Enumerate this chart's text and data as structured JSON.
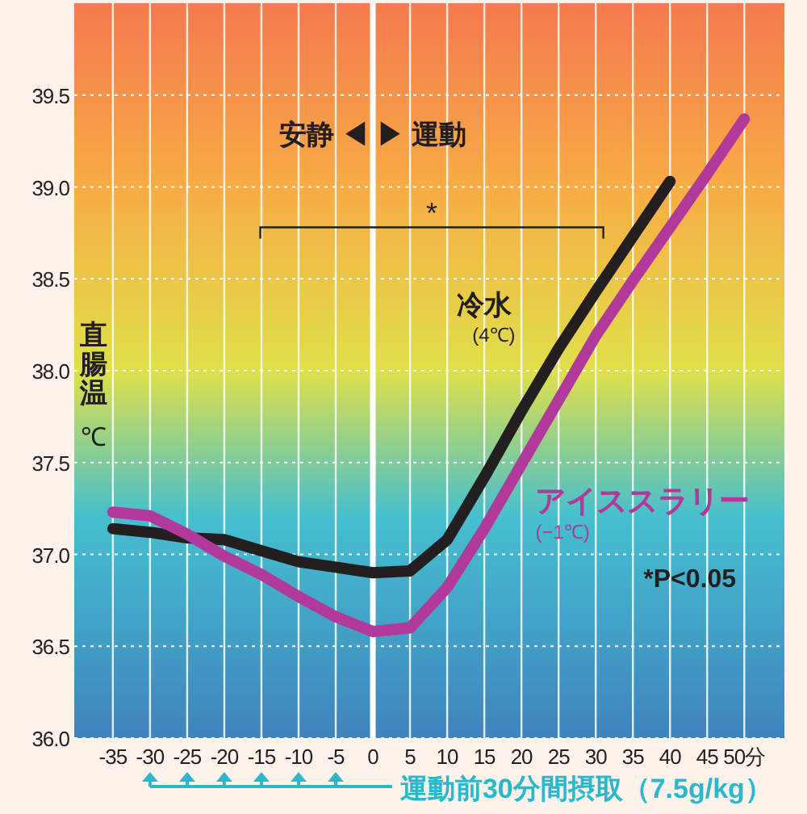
{
  "chart_data": {
    "type": "line",
    "ylabel": "直腸温\n℃",
    "x": [
      -35,
      -30,
      -25,
      -20,
      -15,
      -10,
      -5,
      0,
      5,
      10,
      15,
      20,
      25,
      30,
      35,
      40,
      45,
      50
    ],
    "series": [
      {
        "name": "冷水$_{(4℃)}$",
        "color": "#231f20",
        "values": [
          37.14,
          37.12,
          37.09,
          37.08,
          37.02,
          36.96,
          36.93,
          36.9,
          36.91,
          37.08,
          37.42,
          37.78,
          38.12,
          38.43,
          38.73,
          39.03,
          null,
          null
        ]
      },
      {
        "name": "アイススラリー$_{(−1℃)}$",
        "color": "#b0399a",
        "values": [
          37.23,
          37.21,
          37.11,
          36.99,
          36.89,
          36.77,
          36.66,
          36.58,
          36.6,
          36.82,
          37.14,
          37.49,
          37.84,
          38.19,
          38.49,
          38.78,
          39.07,
          39.37
        ]
      }
    ],
    "xlim": [
      -40.2,
      55.4
    ],
    "ylim": [
      36,
      40
    ],
    "xticks": [
      -35,
      -30,
      -25,
      -20,
      -15,
      -10,
      -5,
      0,
      5,
      10,
      15,
      20,
      25,
      30,
      35,
      40,
      45,
      {
        "value": 50,
        "label": "50分"
      }
    ],
    "yticks": [
      {
        "value": 36,
        "label": "36.0"
      },
      36.5,
      {
        "value": 37,
        "label": "37.0"
      },
      37.5,
      {
        "value": 38,
        "label": "38.0"
      },
      38.5,
      {
        "value": 39,
        "label": "39.0"
      },
      39.5
    ],
    "grid": true,
    "marker": "none",
    "line_style": "solid",
    "ref_lines": [
      {
        "axis": "x",
        "value": 0,
        "color": "#ffffff"
      }
    ],
    "annotations": [
      {
        "text": "安静 ◀ ▶ 運動",
        "x": 0,
        "y": 39.29
      },
      "*",
      "*P<0.05",
      "運動前30分間摂取（7.5g/kg）"
    ]
  }
}
